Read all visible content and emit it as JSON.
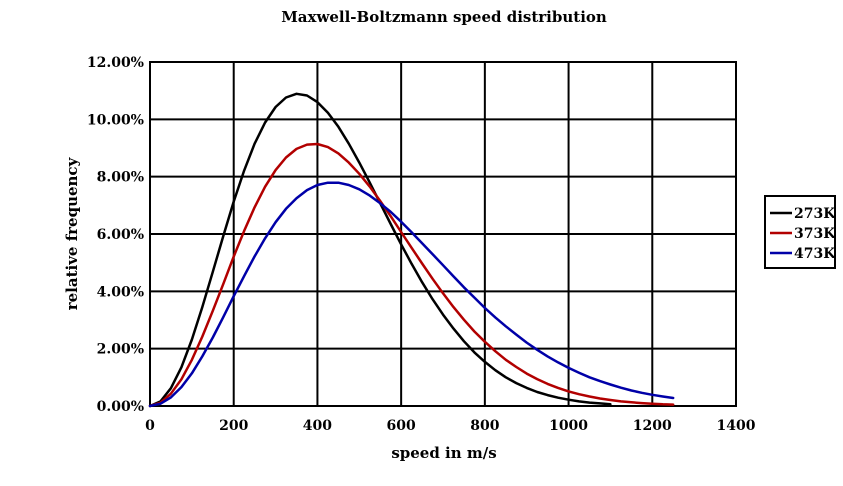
{
  "chart_data": {
    "type": "line",
    "title": "Maxwell-Boltzmann speed distribution",
    "xlabel": "speed in m/s",
    "ylabel": "relative frequency",
    "xlim": [
      0,
      1400
    ],
    "ylim": [
      0,
      0.12
    ],
    "x_ticks": [
      0,
      200,
      400,
      600,
      800,
      1000,
      1200,
      1400
    ],
    "y_ticks": [
      0,
      0.02,
      0.04,
      0.06,
      0.08,
      0.1,
      0.12
    ],
    "x_tick_labels": [
      "0",
      "200",
      "400",
      "600",
      "800",
      "1000",
      "1200",
      "1400"
    ],
    "y_tick_labels": [
      "0.00%",
      "2.00%",
      "4.00%",
      "6.00%",
      "8.00%",
      "10.00%",
      "12.00%"
    ],
    "grid": true,
    "legend_position": "right",
    "series": [
      {
        "name": "273K",
        "color": "#000000",
        "x": [
          0,
          25,
          50,
          75,
          100,
          125,
          150,
          175,
          200,
          225,
          250,
          275,
          300,
          325,
          350,
          375,
          400,
          425,
          450,
          475,
          500,
          525,
          550,
          575,
          600,
          625,
          650,
          675,
          700,
          725,
          750,
          775,
          800,
          825,
          850,
          875,
          900,
          925,
          950,
          975,
          1000,
          1025,
          1050,
          1075,
          1100
        ],
        "y": [
          0,
          0.0016,
          0.0062,
          0.0135,
          0.0232,
          0.0345,
          0.0468,
          0.0593,
          0.0713,
          0.0822,
          0.0915,
          0.0989,
          0.1043,
          0.1076,
          0.1089,
          0.1083,
          0.106,
          0.1023,
          0.0974,
          0.0915,
          0.0849,
          0.0779,
          0.0707,
          0.0635,
          0.0564,
          0.0496,
          0.0432,
          0.0373,
          0.0319,
          0.027,
          0.0226,
          0.0187,
          0.0154,
          0.0125,
          0.01,
          0.008,
          0.0063,
          0.0049,
          0.0038,
          0.0029,
          0.0022,
          0.0016,
          0.0012,
          0.0009,
          0.0006
        ]
      },
      {
        "name": "373K",
        "color": "#b20000",
        "x": [
          0,
          25,
          50,
          75,
          100,
          125,
          150,
          175,
          200,
          225,
          250,
          275,
          300,
          325,
          350,
          375,
          400,
          425,
          450,
          475,
          500,
          525,
          550,
          575,
          600,
          625,
          650,
          675,
          700,
          725,
          750,
          775,
          800,
          825,
          850,
          875,
          900,
          925,
          950,
          975,
          1000,
          1025,
          1050,
          1075,
          1100,
          1125,
          1150,
          1175,
          1200,
          1225,
          1250
        ],
        "y": [
          0,
          0.0011,
          0.0043,
          0.0093,
          0.0161,
          0.0242,
          0.0332,
          0.0426,
          0.0521,
          0.0611,
          0.0693,
          0.0765,
          0.0823,
          0.0867,
          0.0897,
          0.0912,
          0.0914,
          0.0903,
          0.0881,
          0.0849,
          0.081,
          0.0765,
          0.0715,
          0.0662,
          0.0607,
          0.0552,
          0.0497,
          0.0444,
          0.0393,
          0.0345,
          0.0301,
          0.026,
          0.0224,
          0.0191,
          0.0161,
          0.0136,
          0.0113,
          0.0094,
          0.0077,
          0.0063,
          0.0051,
          0.0041,
          0.0033,
          0.0026,
          0.0021,
          0.0016,
          0.0013,
          0.001,
          0.0008,
          0.0006,
          0.0005
        ]
      },
      {
        "name": "473K",
        "color": "#0000a8",
        "x": [
          0,
          25,
          50,
          75,
          100,
          125,
          150,
          175,
          200,
          225,
          250,
          275,
          300,
          325,
          350,
          375,
          400,
          425,
          450,
          475,
          500,
          525,
          550,
          575,
          600,
          625,
          650,
          675,
          700,
          725,
          750,
          775,
          800,
          825,
          850,
          875,
          900,
          925,
          950,
          975,
          1000,
          1025,
          1050,
          1075,
          1100,
          1125,
          1150,
          1175,
          1200,
          1225,
          1250
        ],
        "y": [
          0,
          0.0008,
          0.003,
          0.0066,
          0.0114,
          0.0173,
          0.0239,
          0.031,
          0.0383,
          0.0454,
          0.0522,
          0.0585,
          0.0641,
          0.0688,
          0.0725,
          0.0753,
          0.0771,
          0.0779,
          0.0779,
          0.0771,
          0.0756,
          0.0734,
          0.0707,
          0.0677,
          0.0643,
          0.0606,
          0.0568,
          0.053,
          0.0491,
          0.0452,
          0.0414,
          0.0378,
          0.0342,
          0.0309,
          0.0278,
          0.0249,
          0.0221,
          0.0196,
          0.0173,
          0.0152,
          0.0133,
          0.0116,
          0.01,
          0.0087,
          0.0075,
          0.0064,
          0.0054,
          0.0046,
          0.0039,
          0.0033,
          0.0028
        ]
      }
    ]
  }
}
